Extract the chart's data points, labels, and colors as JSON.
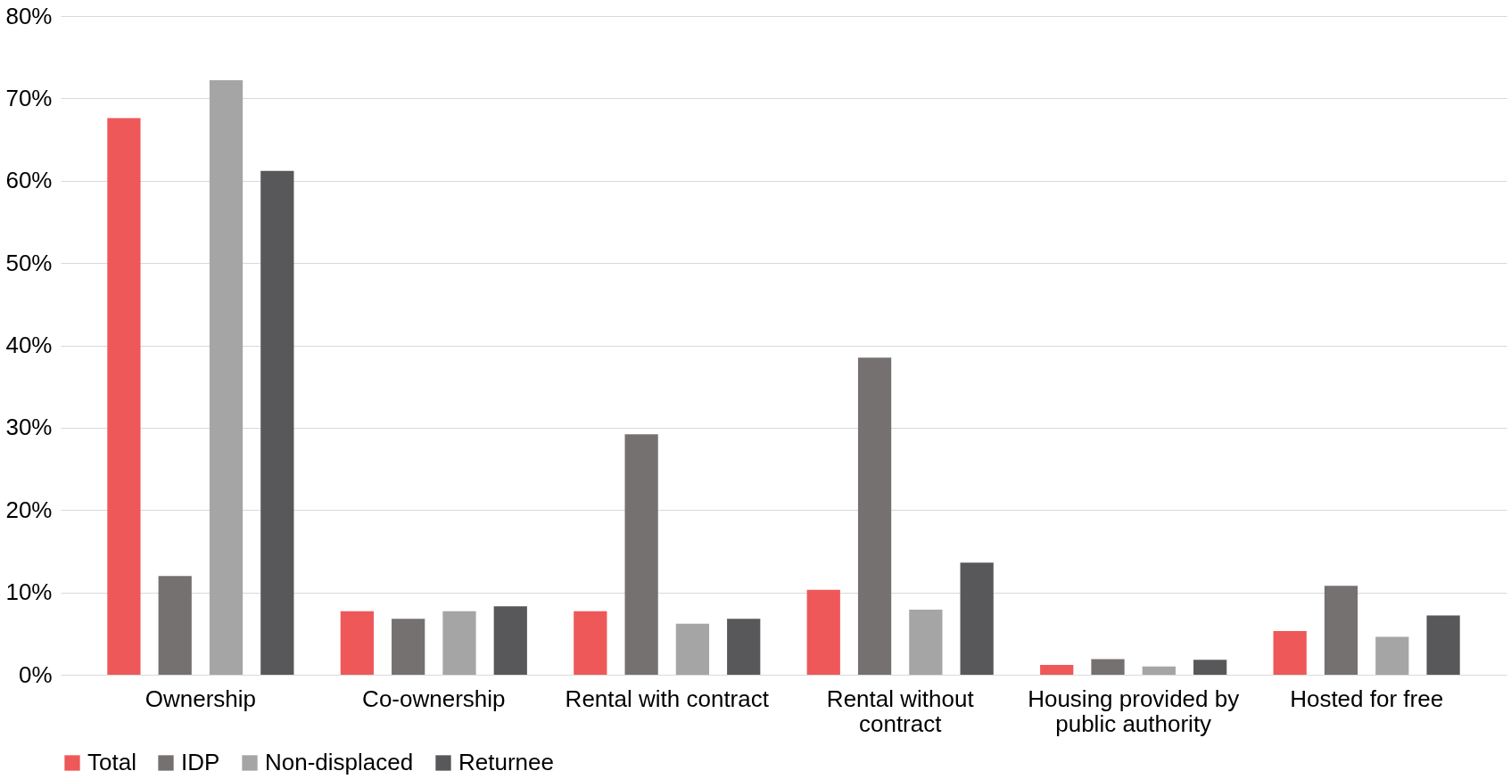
{
  "chart_data": {
    "type": "bar",
    "categories": [
      "Ownership",
      "Co-ownership",
      "Rental with contract",
      "Rental without contract",
      "Housing provided by public authority",
      "Hosted for free"
    ],
    "series": [
      {
        "name": "Total",
        "color": "#ee5859",
        "values": [
          67.6,
          7.7,
          7.7,
          10.3,
          1.2,
          5.3
        ]
      },
      {
        "name": "IDP",
        "color": "#767171",
        "values": [
          12.0,
          6.8,
          29.2,
          38.5,
          1.9,
          10.8
        ]
      },
      {
        "name": "Non-displaced",
        "color": "#a5a5a5",
        "values": [
          72.2,
          7.7,
          6.2,
          7.9,
          1.0,
          4.6
        ]
      },
      {
        "name": "Returnee",
        "color": "#58585a",
        "values": [
          61.2,
          8.3,
          6.8,
          13.6,
          1.8,
          7.2
        ]
      }
    ],
    "ylim": [
      0,
      80
    ],
    "yticks": [
      {
        "value": 0,
        "label": "0%"
      },
      {
        "value": 10,
        "label": "10%"
      },
      {
        "value": 20,
        "label": "20%"
      },
      {
        "value": 30,
        "label": "30%"
      },
      {
        "value": 40,
        "label": "40%"
      },
      {
        "value": 50,
        "label": "50%"
      },
      {
        "value": 60,
        "label": "60%"
      },
      {
        "value": 70,
        "label": "70%"
      },
      {
        "value": 80,
        "label": "80%"
      }
    ],
    "grid": "y",
    "legend": "bottom"
  }
}
